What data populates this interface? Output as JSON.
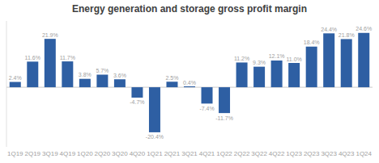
{
  "chart_data": {
    "type": "bar",
    "title": "Energy generation and storage gross profit margin",
    "categories": [
      "1Q19",
      "2Q19",
      "3Q19",
      "4Q19",
      "1Q20",
      "2Q20",
      "3Q20",
      "4Q20",
      "1Q21",
      "2Q21",
      "3Q21",
      "4Q21",
      "1Q22",
      "2Q22",
      "3Q22",
      "4Q22",
      "1Q23",
      "2Q23",
      "3Q23",
      "4Q23",
      "1Q24"
    ],
    "values": [
      2.4,
      11.6,
      21.9,
      11.7,
      3.8,
      5.7,
      3.6,
      -4.7,
      -20.4,
      2.5,
      0.4,
      -7.4,
      -11.7,
      11.2,
      9.3,
      12.1,
      11.0,
      18.4,
      24.4,
      21.8,
      24.6
    ],
    "value_labels": [
      "2.4%",
      "11.6%",
      "21.9%",
      "11.7%",
      "3.8%",
      "5.7%",
      "3.6%",
      "-4.7%",
      "-20.4%",
      "2.5%",
      "0.4%",
      "-7.4%",
      "-11.7%",
      "11.2%",
      "9.3%",
      "12.1%",
      "11.0%",
      "18.4%",
      "24.4%",
      "21.8%",
      "24.6%"
    ],
    "color": "#2e5fa3",
    "ylim": [
      -27,
      30
    ],
    "yticks": [
      0
    ],
    "data_labels": true,
    "tick_labels": "x",
    "grid": false
  }
}
